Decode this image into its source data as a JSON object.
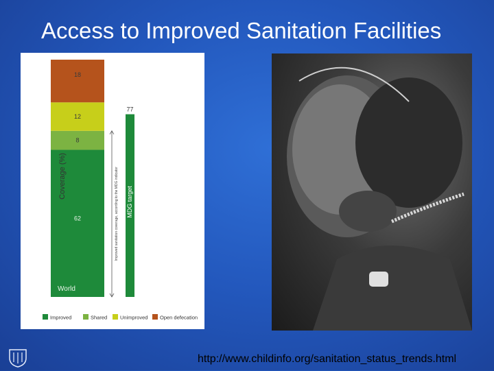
{
  "slide": {
    "title": "Access to Improved Sanitation Facilities",
    "source": "http://www.childinfo.org/sanitation_status_trends.html",
    "logo": "MAYO CLINIC"
  },
  "chart_data": {
    "type": "bar",
    "categories": [
      "World"
    ],
    "series": [
      {
        "name": "Improved",
        "values": [
          62
        ],
        "color": "#1e8a3a"
      },
      {
        "name": "Shared",
        "values": [
          8
        ],
        "color": "#7cb342"
      },
      {
        "name": "Unimproved",
        "values": [
          12
        ],
        "color": "#c7cf1a"
      },
      {
        "name": "Open defecation",
        "values": [
          18
        ],
        "color": "#b5531c"
      }
    ],
    "target": {
      "label": "MDG target",
      "value": 77,
      "color": "#1e8a3a"
    },
    "ylabel": "Coverage (%)",
    "bracket_label": "Improved sanitation coverage, according to the MDG indicator",
    "ylim": [
      0,
      100
    ],
    "legend_position": "bottom"
  }
}
